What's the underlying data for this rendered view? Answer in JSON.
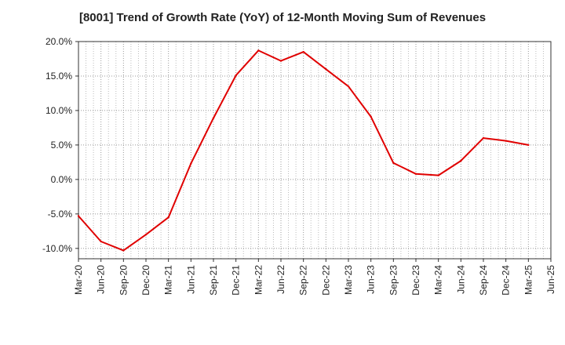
{
  "chart_data": {
    "type": "line",
    "title": "[8001]  Trend of Growth Rate (YoY) of 12-Month Moving Sum of Revenues",
    "xlabel": "",
    "ylabel": "",
    "x": [
      "Mar-20",
      "Jun-20",
      "Sep-20",
      "Dec-20",
      "Mar-21",
      "Jun-21",
      "Sep-21",
      "Dec-21",
      "Mar-22",
      "Jun-22",
      "Sep-22",
      "Dec-22",
      "Mar-23",
      "Jun-23",
      "Sep-23",
      "Dec-23",
      "Mar-24",
      "Jun-24",
      "Sep-24",
      "Dec-24",
      "Mar-25",
      "Jun-25"
    ],
    "series": [
      {
        "values": [
          -5.3,
          -9.0,
          -10.3,
          -8.0,
          -5.5,
          2.3,
          8.9,
          15.1,
          18.7,
          17.2,
          18.5,
          16.0,
          13.5,
          9.1,
          2.4,
          0.8,
          0.6,
          2.7,
          6.0,
          5.6,
          5.0,
          null
        ]
      }
    ],
    "ylim": [
      -11.5,
      20.0
    ],
    "yticks": [
      20.0,
      15.0,
      10.0,
      5.0,
      0.0,
      -5.0,
      -10.0
    ],
    "ytick_labels": [
      "20.0%",
      "15.0%",
      "10.0%",
      "5.0%",
      "0.0%",
      "-5.0%",
      "-10.0%"
    ],
    "grid": true,
    "colors": {
      "line": "#e00000",
      "grid": "#999999",
      "axis": "#333333",
      "text": "#222222"
    }
  }
}
